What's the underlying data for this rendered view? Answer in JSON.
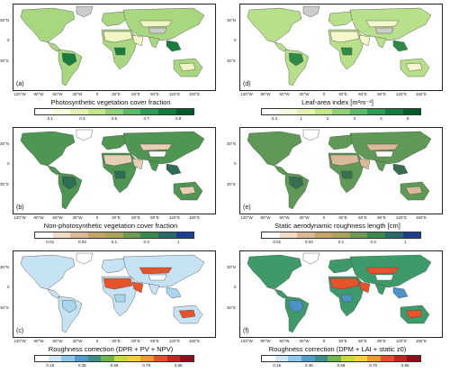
{
  "panels": [
    {
      "label": "(a)",
      "title": "Photosynthetic vegetation cover fraction",
      "lat_ticks": [
        "30°N",
        "0",
        "30°S"
      ],
      "lon_ticks": [
        "120°W",
        "90°W",
        "60°W",
        "30°W",
        "0",
        "30°E",
        "60°E",
        "90°E",
        "120°E",
        "150°E"
      ],
      "cbar_colors": [
        "#ffffff",
        "#f7fcdc",
        "#e4f3b4",
        "#c2e58e",
        "#93d07c",
        "#5fb86a",
        "#349a53",
        "#157a3d",
        "#00582b"
      ],
      "cbar_ticks": [
        "0.1",
        "0.3",
        "0.5",
        "0.7",
        "0.9"
      ],
      "colors": {
        "land": "#a9d77f",
        "wet": "#1c7b3f",
        "dry": "#f2f6c2",
        "ice": "#cccccc"
      }
    },
    {
      "label": "(d)",
      "title": "Leaf-area index [m²m⁻²]",
      "lat_ticks": [
        "30°N",
        "0",
        "30°S"
      ],
      "lon_ticks": [
        "120°W",
        "90°W",
        "60°W",
        "30°W",
        "0",
        "30°E",
        "60°E",
        "90°E",
        "120°E",
        "150°E"
      ],
      "cbar_colors": [
        "#ffffff",
        "#f7fcdc",
        "#e4f3b4",
        "#c2e58e",
        "#93d07c",
        "#5fb86a",
        "#349a53",
        "#157a3d",
        "#00582b"
      ],
      "cbar_ticks": [
        "0.3",
        "1",
        "2",
        "3",
        "4",
        "5"
      ],
      "colors": {
        "land": "#b8df8a",
        "wet": "#2e8a47",
        "dry": "#f4f8cc",
        "ice": "#cccccc"
      }
    },
    {
      "label": "(b)",
      "title": "Non-photosynthetic vegetation cover fraction",
      "lat_ticks": [
        "30°N",
        "0",
        "30°S"
      ],
      "lon_ticks": [
        "120°W",
        "90°W",
        "60°W",
        "30°W",
        "0",
        "30°E",
        "60°E",
        "90°E",
        "120°E",
        "150°E"
      ],
      "cbar_colors": [
        "#ffffff",
        "#f1dcc8",
        "#d9b998",
        "#c3a56a",
        "#a8a45a",
        "#6f9a52",
        "#3b8a4e",
        "#2b6a6a",
        "#1f3f8c"
      ],
      "cbar_ticks": [
        "0.01",
        "0.03",
        "0.1",
        "0.3",
        "1"
      ],
      "colors": {
        "land": "#4f9653",
        "wet": "#2d6c55",
        "dry": "#e6cfb4",
        "ice": "#ffffff"
      }
    },
    {
      "label": "(e)",
      "title": "Static aerodynamic roughness length [cm]",
      "lat_ticks": [
        "30°N",
        "0",
        "30°S"
      ],
      "lon_ticks": [
        "120°W",
        "90°W",
        "60°W",
        "30°W",
        "0",
        "30°E",
        "60°E",
        "90°E",
        "120°E",
        "150°E"
      ],
      "cbar_colors": [
        "#ffffff",
        "#f1dcc8",
        "#d9b998",
        "#c3a56a",
        "#a8a45a",
        "#6f9a52",
        "#3b8a4e",
        "#2b6a6a",
        "#1f3f8c"
      ],
      "cbar_ticks": [
        "0.01",
        "0.03",
        "0.1",
        "0.3",
        "1"
      ],
      "colors": {
        "land": "#5e9a55",
        "wet": "#366e4f",
        "dry": "#d9b998",
        "ice": "#ffffff"
      }
    },
    {
      "label": "(c)",
      "title": "Roughness correction (DPR + PV + NPV)",
      "lat_ticks": [
        "30°N",
        "0",
        "30°S"
      ],
      "lon_ticks": [
        "120°W",
        "90°W",
        "60°W",
        "30°W",
        "0",
        "30°E",
        "60°E",
        "90°E",
        "120°E",
        "150°E"
      ],
      "cbar_colors": [
        "#ffffff",
        "#cde8f7",
        "#8fc8ea",
        "#4f9fcf",
        "#3c8f8a",
        "#6fb84a",
        "#c5db3c",
        "#f6d23a",
        "#f39a2c",
        "#e3502a",
        "#c1271f",
        "#8e0f18"
      ],
      "cbar_ticks": [
        "0.15",
        "0.35",
        "0.55",
        "0.75",
        "0.95"
      ],
      "colors": {
        "land": "#c6e3f3",
        "wet": "#a9d4ee",
        "dry": "#e8532b",
        "ice": "#ffffff"
      }
    },
    {
      "label": "(f)",
      "title": "Roughness correction (DPM + LAI + static z0)",
      "lat_ticks": [
        "30°N",
        "0",
        "30°S"
      ],
      "lon_ticks": [
        "120°W",
        "90°W",
        "60°W",
        "30°W",
        "0",
        "30°E",
        "60°E",
        "90°E",
        "120°E",
        "150°E"
      ],
      "cbar_colors": [
        "#ffffff",
        "#cde8f7",
        "#8fc8ea",
        "#4f9fcf",
        "#3c8f8a",
        "#6fb84a",
        "#c5db3c",
        "#f6d23a",
        "#f39a2c",
        "#e3502a",
        "#c1271f",
        "#8e0f18"
      ],
      "cbar_ticks": [
        "0.15",
        "0.35",
        "0.55",
        "0.75",
        "0.95"
      ],
      "colors": {
        "land": "#3f9a6a",
        "wet": "#4b93c7",
        "dry": "#e8532b",
        "ice": "#ffffff"
      }
    }
  ]
}
